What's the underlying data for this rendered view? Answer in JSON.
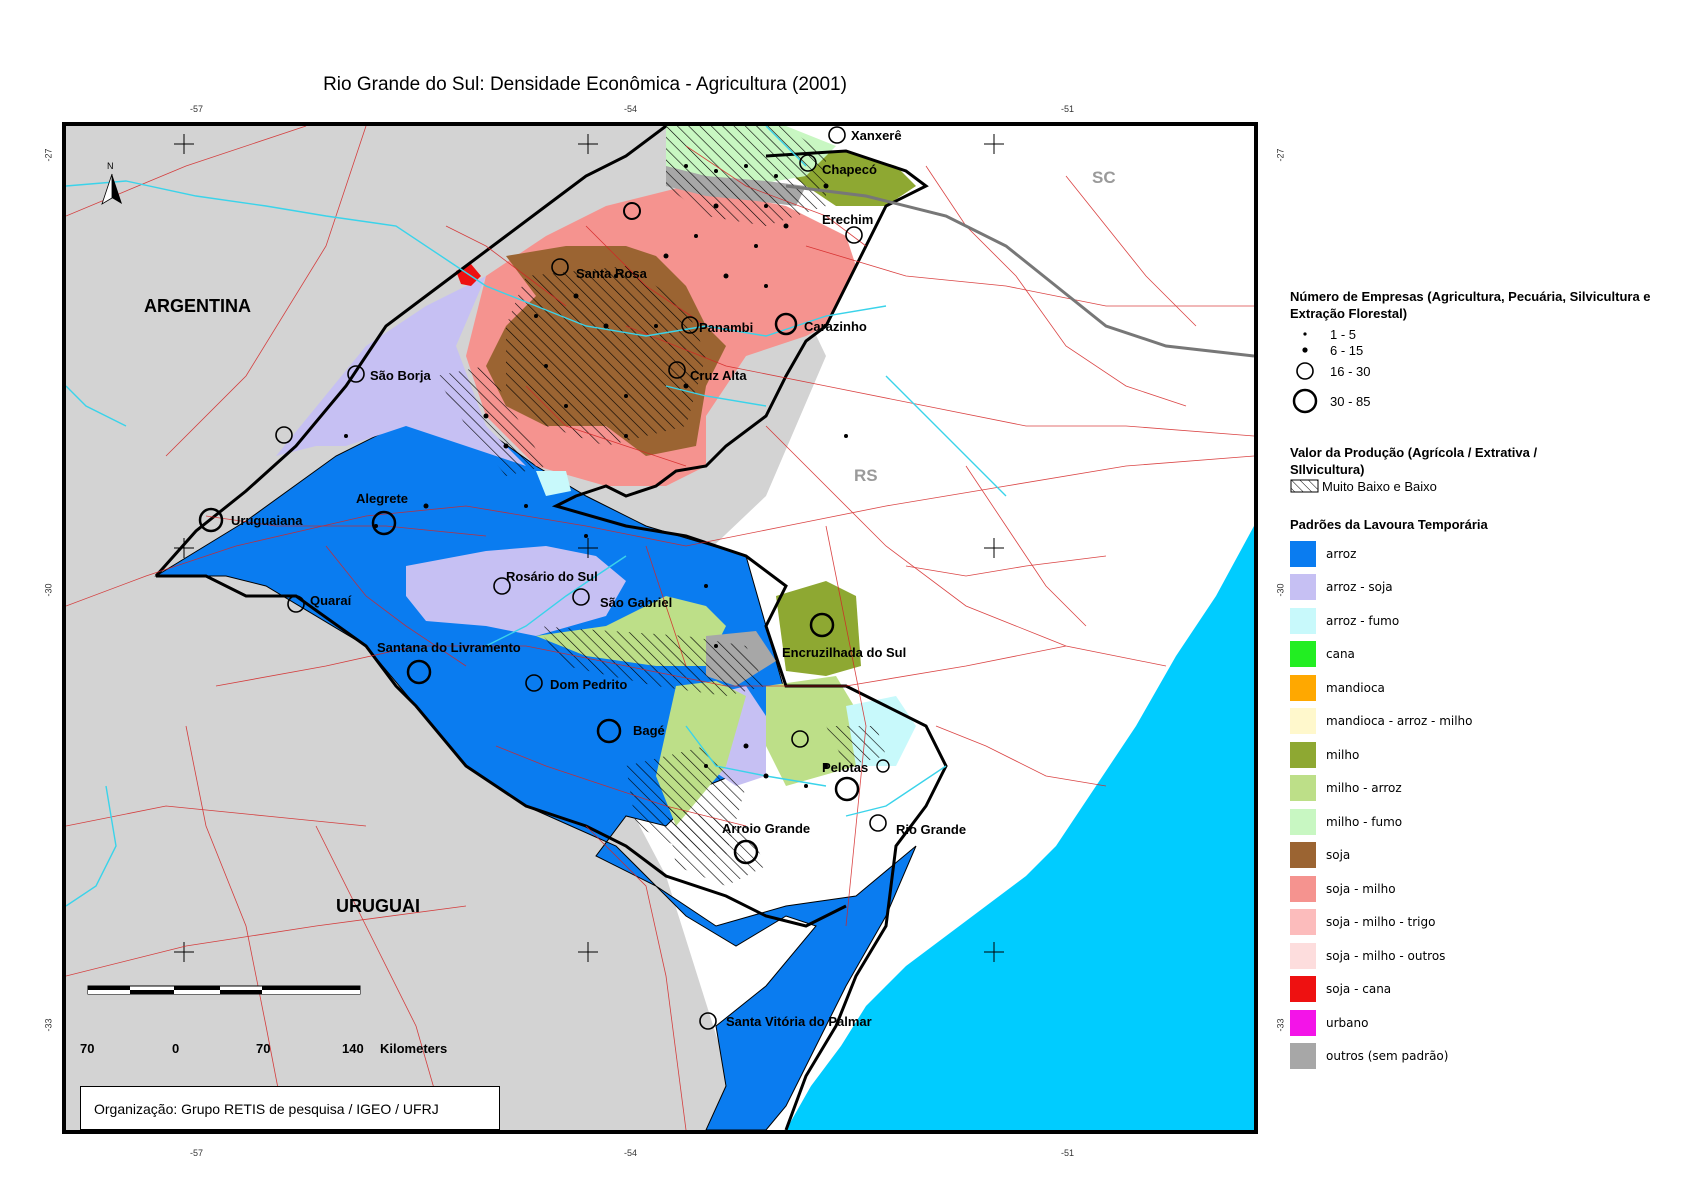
{
  "title": "Rio Grande do Sul: Densidade Econômica - Agricultura (2001)",
  "graticule": {
    "lon_labels": [
      "-57",
      "-54",
      "-51"
    ],
    "lat_labels": [
      "-27",
      "-30",
      "-33"
    ]
  },
  "map_labels": {
    "countries": [
      "ARGENTINA",
      "URUGUAI"
    ],
    "states": [
      "SC",
      "RS"
    ],
    "north": "N"
  },
  "cities": [
    "Xanxerê",
    "Chapecó",
    "Erechim",
    "Santa Rosa",
    "Panambi",
    "Carazinho",
    "São Borja",
    "Cruz Alta",
    "Alegrete",
    "Uruguaiana",
    "Rosário do Sul",
    "São Gabriel",
    "Quaraí",
    "Encruzilhada do Sul",
    "Santana do Livramento",
    "Dom Pedrito",
    "Bagé",
    "Pelotas",
    "Arroio Grande",
    "Rio Grande",
    "Santa Vitória do Palmar"
  ],
  "scale": {
    "ticks": [
      "70",
      "0",
      "70",
      "140"
    ],
    "unit": "Kilometers"
  },
  "credit": "Organização: Grupo RETIS de pesquisa / IGEO / UFRJ",
  "legend": {
    "empresas": {
      "title": "Número de Empresas (Agricultura, Pecuária, Silvicultura e Extração Florestal)",
      "classes": [
        "1 - 5",
        "6 - 15",
        "16 - 30",
        "30 - 85"
      ]
    },
    "producao": {
      "title": "Valor da Produção (Agrícola / Extrativa / SIlvicultura)",
      "item": "Muito Baixo e Baixo"
    },
    "lavoura": {
      "title": "Padrões da Lavoura Temporária",
      "items": [
        {
          "label": "arroz",
          "color": "#0a7cf0"
        },
        {
          "label": "arroz - soja",
          "color": "#c6c0f3"
        },
        {
          "label": "arroz - fumo",
          "color": "#c8f9fb"
        },
        {
          "label": "cana",
          "color": "#22ee22"
        },
        {
          "label": "mandioca",
          "color": "#ffa800"
        },
        {
          "label": "mandioca - arroz - milho",
          "color": "#fff8cc"
        },
        {
          "label": "milho",
          "color": "#8ea832"
        },
        {
          "label": "milho - arroz",
          "color": "#bddf88"
        },
        {
          "label": "milho - fumo",
          "color": "#c8f7c2"
        },
        {
          "label": "soja",
          "color": "#9b6432"
        },
        {
          "label": "soja - milho",
          "color": "#f5938f"
        },
        {
          "label": "soja - milho - trigo",
          "color": "#fcbcbc"
        },
        {
          "label": "soja - milho - outros",
          "color": "#fddddd"
        },
        {
          "label": "soja - cana",
          "color": "#ee1111"
        },
        {
          "label": "urbano",
          "color": "#f314e8"
        },
        {
          "label": "outros (sem padrão)",
          "color": "#a7a7a7"
        }
      ]
    }
  },
  "colors": {
    "foreign": "#d3d3d3",
    "ocean": "#00ccff",
    "outside_region": "#ffffff",
    "roads": "#d42424",
    "rivers": "#3ad3ea"
  }
}
